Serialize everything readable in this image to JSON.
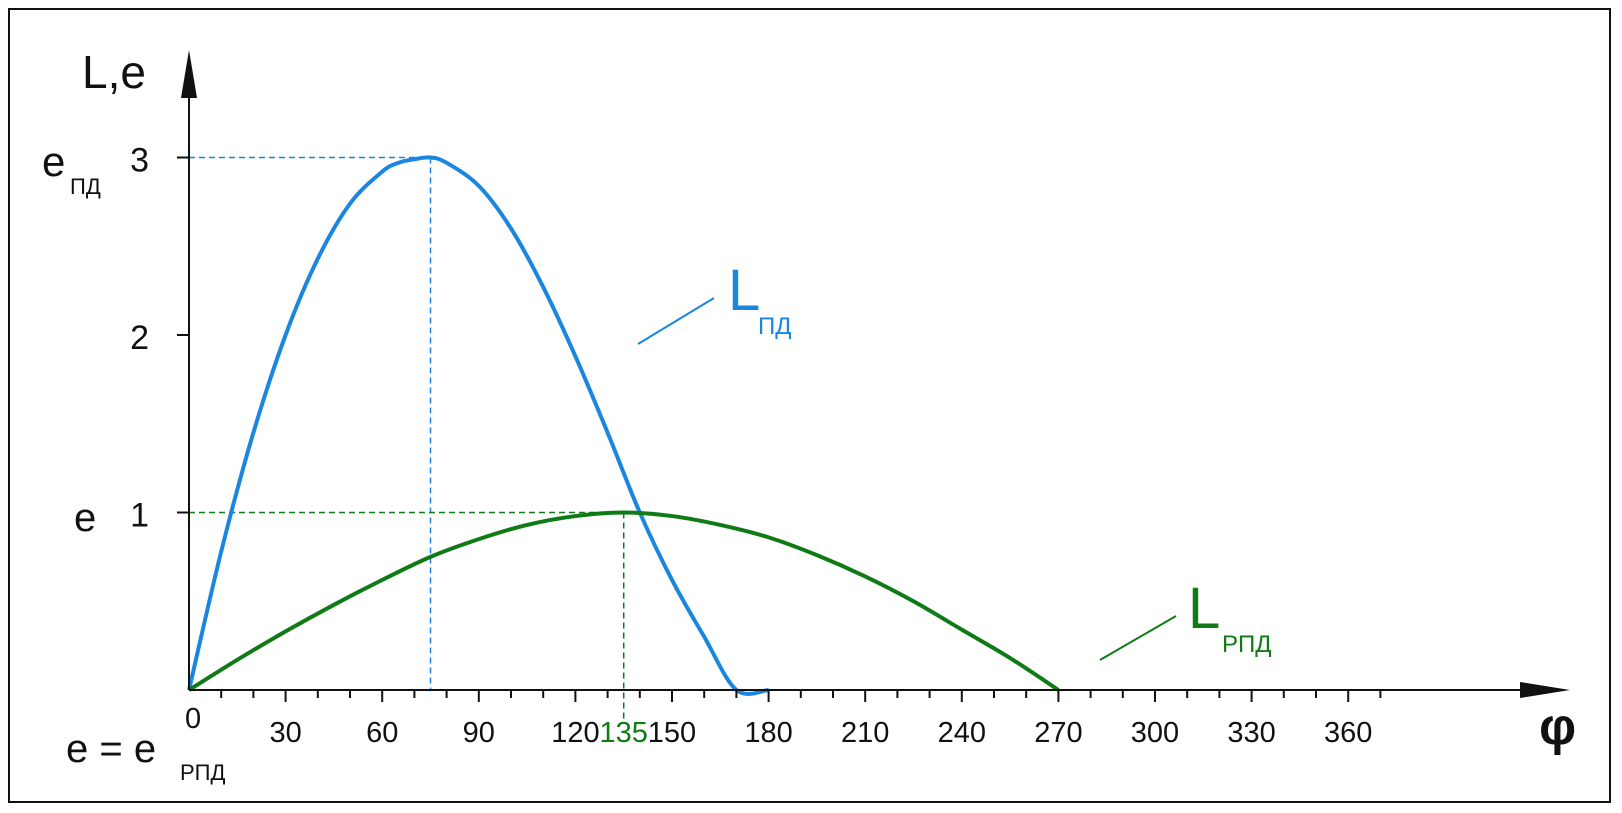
{
  "chart_data": {
    "type": "line",
    "axis_y_title": "L,e",
    "axis_x_title": "φ",
    "x_ticks": [
      0,
      30,
      60,
      90,
      120,
      150,
      180,
      210,
      240,
      270,
      300,
      330,
      360
    ],
    "x_tick_labels": [
      "0",
      "30",
      "60",
      "90",
      "120",
      "150",
      "180",
      "210",
      "240",
      "270",
      "300",
      "330",
      "360"
    ],
    "x_minor_step": 10,
    "y_ticks": [
      1,
      2,
      3
    ],
    "y_tick_labels": [
      "1",
      "2",
      "3"
    ],
    "xlim": [
      0,
      390
    ],
    "ylim": [
      0,
      3.5
    ],
    "y_side_labels": {
      "e_pd_main": "e",
      "e_pd_sub": "ПД",
      "e_main": "e",
      "origin_main": "e = e",
      "origin_sub": "РПД"
    },
    "series": [
      {
        "name": "L",
        "name_sub": "ПД",
        "color": "#1b86e0",
        "x": [
          0,
          10,
          20,
          30,
          40,
          50,
          60,
          65,
          70,
          75,
          80,
          90,
          100,
          110,
          120,
          130,
          140,
          150,
          160,
          170,
          180
        ],
        "y": [
          0,
          0.78,
          1.45,
          2.0,
          2.43,
          2.74,
          2.92,
          2.97,
          2.99,
          3.0,
          2.97,
          2.84,
          2.6,
          2.27,
          1.88,
          1.45,
          1.0,
          0.62,
          0.3,
          0.0,
          0.0
        ]
      },
      {
        "name": "L",
        "name_sub": "РПД",
        "color": "#0f7a16",
        "x": [
          0,
          15,
          30,
          45,
          60,
          75,
          90,
          105,
          120,
          135,
          150,
          165,
          180,
          195,
          210,
          225,
          240,
          255,
          270
        ],
        "y": [
          0,
          0.17,
          0.33,
          0.48,
          0.62,
          0.75,
          0.85,
          0.93,
          0.98,
          1.0,
          0.98,
          0.93,
          0.86,
          0.76,
          0.64,
          0.5,
          0.34,
          0.18,
          0.0
        ]
      }
    ],
    "guides": [
      {
        "color": "#1b86e0",
        "x": 75,
        "y": 3
      },
      {
        "color": "#0f7a16",
        "x": 135,
        "y": 1
      }
    ],
    "highlight_x": {
      "value": 135,
      "label": "135",
      "color": "#0f7a16"
    }
  }
}
